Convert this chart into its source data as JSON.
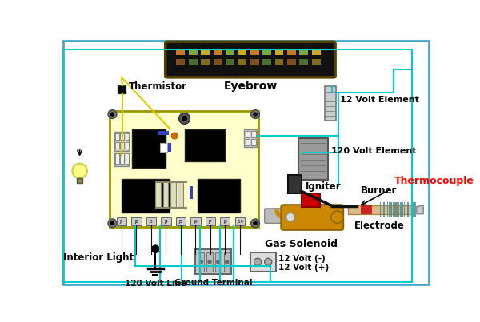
{
  "bg_color": "#ffffff",
  "border_color": "#44aacc",
  "labels": {
    "thermistor": "Thermistor",
    "eyebrow": "Eyebrow",
    "interior_light": "Interior Light",
    "120volt_line": "120 Volt Line",
    "ground_terminal": "Ground Terminal",
    "12volt_neg": "12 Volt (-)",
    "12volt_pos": "12 Volt (+)",
    "12volt_element": "12 Volt Element",
    "120volt_element": "120 Volt Element",
    "igniter": "Igniter",
    "thermocouple": "Thermocouple",
    "gas_solenoid": "Gas Solenoid",
    "burner": "Burner",
    "electrode": "Electrode"
  },
  "colors": {
    "cyan_wire": "#00cccc",
    "black_wire": "#111111",
    "yellow_wire": "#ddcc00",
    "board_bg": "#ffffcc",
    "board_border": "#999900",
    "eyebrow_bg": "#111111",
    "solenoid_color": "#cc8800",
    "red_block": "#cc0000",
    "connector_gray": "#cccccc",
    "light_yellow": "#ffff88",
    "fin_teal": "#558888",
    "thermocouple_label": "red"
  }
}
